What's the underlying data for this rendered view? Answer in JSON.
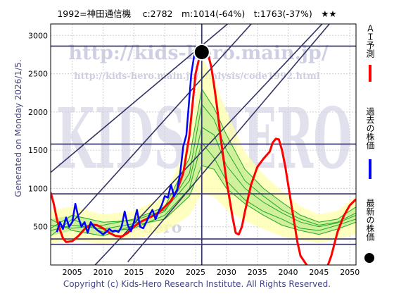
{
  "header": {
    "title": "1992=神田通信機　 c:2782　m:1014(-64%)　t:1763(-37%)　★★"
  },
  "side_label": "Generated on Monday 2026/1/5.",
  "footer": {
    "copyright": "Copyright (c) Kids-Hero Research Institute. All Rights Reserved."
  },
  "watermarks": {
    "url_main": "http://kids-hero.main.jp/",
    "url_sub": "http://kids-hero.main.jp/analysis/code1992.html",
    "big": "KIDS HERO",
    "small": "kids-hero"
  },
  "legend": {
    "ai_label": "ＡＩ予測",
    "past_label": "過去の株価",
    "latest_label": "最新の株価"
  },
  "colors": {
    "ai_line": "#ff0000",
    "past_line": "#0000ff",
    "ensemble": "#22aa22",
    "band_fill": "#ccee99",
    "yellow_fill": "#ffffaa",
    "latest_dot": "#000000"
  },
  "chart_data": {
    "type": "line",
    "xlim": [
      2001.5,
      2051
    ],
    "ylim": [
      0,
      3150
    ],
    "x_ticks": [
      2005,
      2010,
      2015,
      2020,
      2025,
      2030,
      2035,
      2040,
      2045,
      2050
    ],
    "y_ticks": [
      500,
      1000,
      1500,
      2000,
      2500,
      3000
    ],
    "grid": true,
    "latest": {
      "year": 2026,
      "value": 2782
    },
    "hlines": [
      2860,
      1580,
      930,
      340,
      270
    ],
    "vline_year": 2026,
    "trendlines": [
      {
        "x": [
          2014,
          2051
        ],
        "y": [
          40,
          3560
        ]
      },
      {
        "x": [
          2005,
          2046
        ],
        "y": [
          560,
          4220
        ]
      },
      {
        "x": [
          2001.5,
          2046
        ],
        "y": [
          1210,
          4220
        ]
      },
      {
        "x": [
          2008,
          2051
        ],
        "y": [
          -60,
          3620
        ]
      }
    ],
    "series": [
      {
        "name": "過去の株価",
        "x": [
          2002.5,
          2003,
          2003.5,
          2004,
          2004.5,
          2005,
          2005.5,
          2006,
          2006.5,
          2007,
          2007.5,
          2008,
          2008.5,
          2009,
          2009.5,
          2010,
          2010.5,
          2011,
          2011.5,
          2012,
          2012.5,
          2013,
          2013.5,
          2014,
          2014.5,
          2015,
          2015.5,
          2016,
          2016.5,
          2017,
          2017.5,
          2018,
          2018.5,
          2019,
          2019.5,
          2020,
          2020.5,
          2021,
          2021.5,
          2022,
          2022.5,
          2023,
          2023.5,
          2024,
          2024.3,
          2024.6,
          2025,
          2025.3,
          2025.7
        ],
        "y": [
          430,
          560,
          470,
          620,
          500,
          560,
          800,
          620,
          500,
          560,
          420,
          560,
          500,
          460,
          430,
          400,
          430,
          470,
          440,
          450,
          430,
          500,
          700,
          520,
          440,
          560,
          720,
          500,
          480,
          560,
          650,
          720,
          600,
          700,
          780,
          900,
          880,
          1050,
          900,
          980,
          1200,
          1550,
          1700,
          2200,
          2500,
          2650,
          2850,
          2700,
          2782
        ]
      },
      {
        "name": "ＡＩ予測",
        "x": [
          2001.5,
          2002,
          2002.5,
          2003,
          2003.5,
          2004,
          2005,
          2006,
          2007,
          2008,
          2009,
          2010,
          2011,
          2012,
          2013,
          2014,
          2015,
          2016,
          2017,
          2018,
          2019,
          2020,
          2021,
          2022,
          2023,
          2024,
          2025,
          2026,
          2026.5,
          2027,
          2027.5,
          2028,
          2028.5,
          2029,
          2029.5,
          2030,
          2030.5,
          2031,
          2031.5,
          2032,
          2032.5,
          2033,
          2034,
          2035,
          2036,
          2037,
          2037.5,
          2038,
          2038.5,
          2039,
          2039.5,
          2040,
          2040.5,
          2041,
          2041.5,
          2042,
          2043,
          2044,
          2045,
          2046,
          2047,
          2048,
          2049,
          2050,
          2051
        ],
        "y": [
          950,
          800,
          600,
          460,
          350,
          300,
          310,
          380,
          470,
          530,
          520,
          480,
          420,
          380,
          370,
          420,
          500,
          560,
          600,
          640,
          680,
          760,
          840,
          980,
          1200,
          1700,
          2500,
          2850,
          2820,
          2760,
          2600,
          2350,
          2050,
          1700,
          1400,
          1100,
          860,
          620,
          420,
          400,
          500,
          700,
          1050,
          1280,
          1390,
          1480,
          1600,
          1650,
          1640,
          1500,
          1300,
          1050,
          800,
          550,
          300,
          120,
          0,
          -150,
          -230,
          -100,
          120,
          430,
          640,
          780,
          860
        ]
      },
      {
        "name": "ensemble-1",
        "x": [
          2001.5,
          2005,
          2010,
          2015,
          2020,
          2024,
          2026,
          2028,
          2030,
          2033,
          2036,
          2039,
          2042,
          2045,
          2048,
          2051
        ],
        "y": [
          450,
          520,
          470,
          540,
          700,
          1200,
          2100,
          1900,
          1500,
          1100,
          900,
          720,
          600,
          520,
          560,
          680
        ]
      },
      {
        "name": "ensemble-2",
        "x": [
          2001.5,
          2005,
          2010,
          2015,
          2020,
          2024,
          2026,
          2028,
          2030,
          2033,
          2036,
          2039,
          2042,
          2045,
          2048,
          2051
        ],
        "y": [
          380,
          600,
          430,
          480,
          650,
          1000,
          1600,
          1400,
          1100,
          850,
          700,
          600,
          480,
          450,
          520,
          600
        ]
      },
      {
        "name": "ensemble-3",
        "x": [
          2001.5,
          2005,
          2010,
          2015,
          2020,
          2024,
          2026,
          2028,
          2030,
          2033,
          2036,
          2039,
          2042,
          2045,
          2048,
          2051
        ],
        "y": [
          520,
          480,
          520,
          600,
          760,
          1400,
          2300,
          2050,
          1700,
          1250,
          1000,
          820,
          650,
          560,
          600,
          760
        ]
      },
      {
        "name": "ensemble-4",
        "x": [
          2001.5,
          2005,
          2010,
          2015,
          2020,
          2024,
          2026,
          2028,
          2030,
          2033,
          2036,
          2039,
          2042,
          2045,
          2048,
          2051
        ],
        "y": [
          600,
          450,
          380,
          520,
          600,
          900,
          1300,
          1250,
          1000,
          800,
          650,
          520,
          450,
          400,
          470,
          560
        ]
      },
      {
        "name": "ensemble-5",
        "x": [
          2001.5,
          2005,
          2010,
          2015,
          2020,
          2024,
          2026,
          2028,
          2030,
          2033,
          2036,
          2039,
          2042,
          2045,
          2048,
          2051
        ],
        "y": [
          480,
          650,
          560,
          580,
          720,
          1100,
          1800,
          1700,
          1300,
          1000,
          820,
          680,
          560,
          500,
          550,
          650
        ]
      }
    ]
  }
}
